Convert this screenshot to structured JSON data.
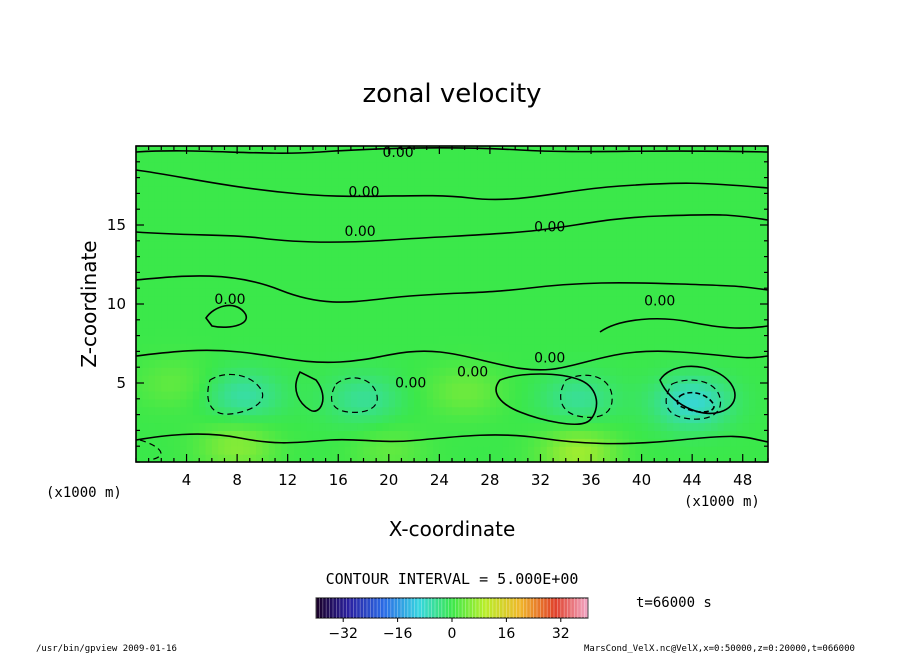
{
  "chart_data": {
    "type": "heatmap",
    "title": "zonal velocity",
    "xlabel": "X-coordinate",
    "ylabel": "Z-coordinate",
    "x_unit": "(x1000 m)",
    "z_unit": "(x1000 m)",
    "xlim": [
      0,
      50
    ],
    "ylim": [
      0,
      20
    ],
    "x_ticks": [
      4,
      8,
      12,
      16,
      20,
      24,
      28,
      32,
      36,
      40,
      44,
      48
    ],
    "x_tick_labels": [
      "4",
      "8",
      "12",
      "16",
      "20",
      "24",
      "28",
      "32",
      "36",
      "40",
      "44",
      "48"
    ],
    "y_ticks": [
      5,
      10,
      15
    ],
    "y_tick_labels": [
      "5",
      "10",
      "15"
    ],
    "contour_interval_text": "CONTOUR INTERVAL = 5.000E+00",
    "contour_label": "0.00",
    "colorbar": {
      "range": [
        -40,
        40
      ],
      "tick_values": [
        -32,
        -16,
        0,
        16,
        32
      ],
      "tick_labels": [
        "−32",
        "−16",
        "0",
        "16",
        "32"
      ]
    },
    "time_text": "t=66000 s",
    "footer_left": "/usr/bin/gpview   2009-01-16",
    "footer_right": "MarsCond_VelX.nc@VelX,x=0:50000,z=0:20000,t=066000",
    "field_features": [
      {
        "x": 8.5,
        "z": 4.2,
        "value": -6
      },
      {
        "x": 18,
        "z": 4.0,
        "value": -5
      },
      {
        "x": 26,
        "z": 4.5,
        "value": 4
      },
      {
        "x": 35,
        "z": 4.0,
        "value": -5
      },
      {
        "x": 44,
        "z": 3.8,
        "value": -9
      },
      {
        "x": 3,
        "z": 5.0,
        "value": 3
      },
      {
        "x": 8,
        "z": 1.0,
        "value": 6
      },
      {
        "x": 20,
        "z": 0.8,
        "value": 3
      },
      {
        "x": 35,
        "z": 0.6,
        "value": 8
      }
    ]
  }
}
